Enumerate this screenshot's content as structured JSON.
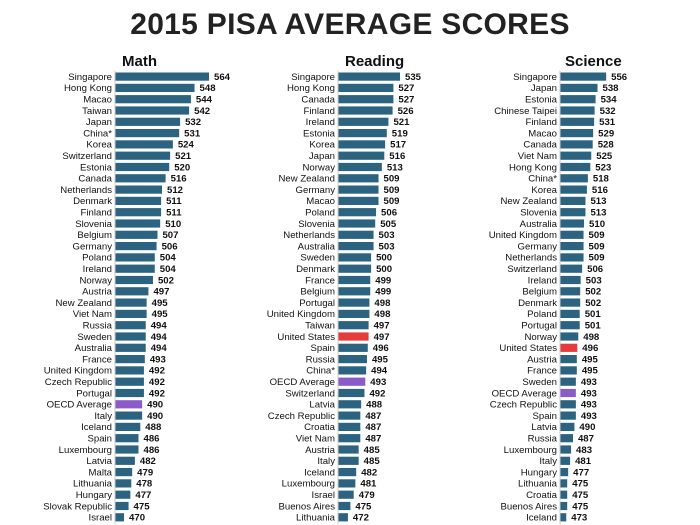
{
  "title": "2015 PISA AVERAGE SCORES",
  "colors": {
    "bar": "#2b6380",
    "united_states": "#e63b3b",
    "oecd_average": "#8a5cc9",
    "axis": "#cccccc"
  },
  "chart_data": [
    {
      "type": "bar",
      "orientation": "horizontal",
      "title": "Math",
      "categories": [
        "Singapore",
        "Hong Kong",
        "Macao",
        "Taiwan",
        "Japan",
        "China*",
        "Korea",
        "Switzerland",
        "Estonia",
        "Canada",
        "Netherlands",
        "Denmark",
        "Finland",
        "Slovenia",
        "Belgium",
        "Germany",
        "Poland",
        "Ireland",
        "Norway",
        "Austria",
        "New Zealand",
        "Viet Nam",
        "Russia",
        "Sweden",
        "Australia",
        "France",
        "United Kingdom",
        "Czech Republic",
        "Portugal",
        "OECD Average",
        "Italy",
        "Iceland",
        "Spain",
        "Luxembourg",
        "Latvia",
        "Malta",
        "Lithuania",
        "Hungary",
        "Slovak Republic",
        "Israel"
      ],
      "values": [
        564,
        548,
        544,
        542,
        532,
        531,
        524,
        521,
        520,
        516,
        512,
        511,
        511,
        510,
        507,
        506,
        504,
        504,
        502,
        497,
        495,
        495,
        494,
        494,
        494,
        493,
        492,
        492,
        492,
        490,
        490,
        488,
        486,
        486,
        482,
        479,
        478,
        477,
        475,
        470
      ]
    },
    {
      "type": "bar",
      "orientation": "horizontal",
      "title": "Reading",
      "categories": [
        "Singapore",
        "Hong Kong",
        "Canada",
        "Finland",
        "Ireland",
        "Estonia",
        "Korea",
        "Japan",
        "Norway",
        "New Zealand",
        "Germany",
        "Macao",
        "Poland",
        "Slovenia",
        "Netherlands",
        "Australia",
        "Sweden",
        "Denmark",
        "France",
        "Belgium",
        "Portugal",
        "United Kingdom",
        "Taiwan",
        "United States",
        "Spain",
        "Russia",
        "China*",
        "OECD Average",
        "Switzerland",
        "Latvia",
        "Czech Republic",
        "Croatia",
        "Viet Nam",
        "Austria",
        "Italy",
        "Iceland",
        "Luxembourg",
        "Israel",
        "Buenos Aires",
        "Lithuania"
      ],
      "values": [
        535,
        527,
        527,
        526,
        521,
        519,
        517,
        516,
        513,
        509,
        509,
        509,
        506,
        505,
        503,
        503,
        500,
        500,
        499,
        499,
        498,
        498,
        497,
        497,
        496,
        495,
        494,
        493,
        492,
        488,
        487,
        487,
        487,
        485,
        485,
        482,
        481,
        479,
        475,
        472
      ]
    },
    {
      "type": "bar",
      "orientation": "horizontal",
      "title": "Science",
      "categories": [
        "Singapore",
        "Japan",
        "Estonia",
        "Chinese Taipei",
        "Finland",
        "Macao",
        "Canada",
        "Viet Nam",
        "Hong Kong",
        "China*",
        "Korea",
        "New Zealand",
        "Slovenia",
        "Australia",
        "United Kingdom",
        "Germany",
        "Netherlands",
        "Switzerland",
        "Ireland",
        "Belgium",
        "Denmark",
        "Poland",
        "Portugal",
        "Norway",
        "United States",
        "Austria",
        "France",
        "Sweden",
        "OECD Average",
        "Czech Republic",
        "Spain",
        "Latvia",
        "Russia",
        "Luxembourg",
        "Italy",
        "Hungary",
        "Lithuania",
        "Croatia",
        "Buenos Aires",
        "Iceland"
      ],
      "values": [
        556,
        538,
        534,
        532,
        531,
        529,
        528,
        525,
        523,
        518,
        516,
        513,
        513,
        510,
        509,
        509,
        509,
        506,
        503,
        502,
        502,
        501,
        501,
        498,
        496,
        495,
        495,
        493,
        493,
        493,
        493,
        490,
        487,
        483,
        481,
        477,
        475,
        475,
        475,
        473
      ]
    }
  ]
}
